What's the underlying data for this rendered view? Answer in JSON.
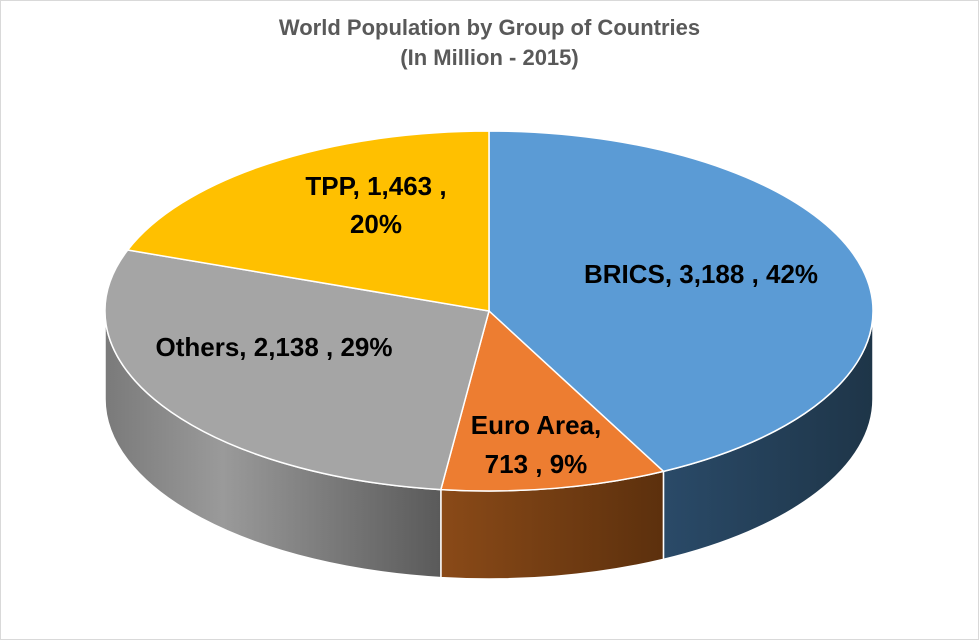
{
  "chart_data": {
    "type": "pie",
    "title": "World Population by Group of Countries",
    "subtitle": "(In Million - 2015)",
    "slices": [
      {
        "name": "BRICS",
        "value": 3188,
        "value_text": "3,188",
        "percent_text": "42%",
        "color": "#5b9bd5",
        "side_color": "#243f58",
        "label_lines": [
          "BRICS,  3,188 , 42%"
        ]
      },
      {
        "name": "Euro Area",
        "value": 713,
        "value_text": "713",
        "percent_text": "9%",
        "color": "#ed7d31",
        "side_color": "#6b3a12",
        "label_lines": [
          "Euro Area,",
          "713 , 9%"
        ]
      },
      {
        "name": "Others",
        "value": 2138,
        "value_text": "2,138",
        "percent_text": "29%",
        "color": "#a5a5a5",
        "side_color": "#8a8a8a",
        "label_lines": [
          "Others,  2,138 , 29%"
        ]
      },
      {
        "name": "TPP",
        "value": 1463,
        "value_text": "1,463",
        "percent_text": "20%",
        "color": "#ffc000",
        "side_color": "#a37b00",
        "label_lines": [
          "TPP,  1,463 ,",
          "20%"
        ]
      }
    ],
    "style": "3d-pie"
  }
}
